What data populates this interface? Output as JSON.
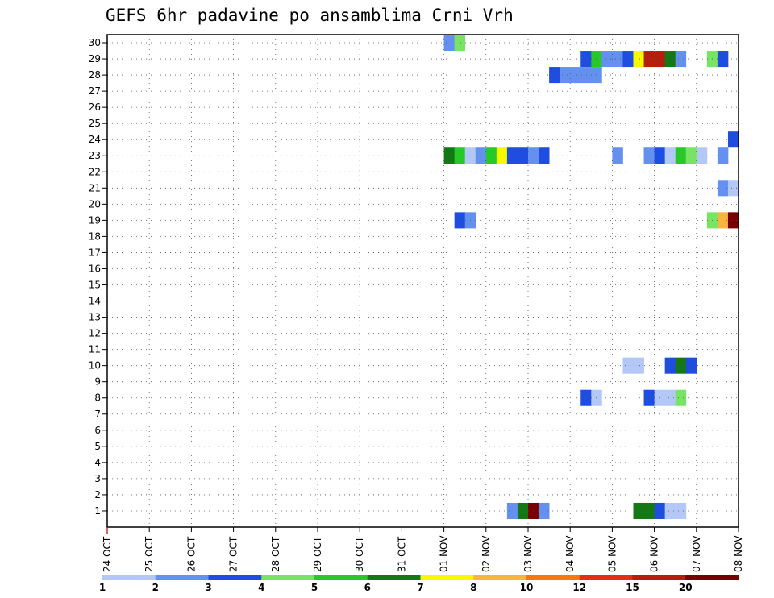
{
  "chart_data": {
    "type": "heatmap",
    "title": "GEFS 6hr padavine po ansamblima Crni Vrh",
    "y_labels": [
      "1",
      "2",
      "3",
      "4",
      "5",
      "6",
      "7",
      "8",
      "9",
      "10",
      "11",
      "12",
      "13",
      "14",
      "15",
      "16",
      "17",
      "18",
      "19",
      "20",
      "21",
      "22",
      "23",
      "24",
      "25",
      "26",
      "27",
      "28",
      "29",
      "30"
    ],
    "x_labels": [
      "24 OCT",
      "25 OCT",
      "26 OCT",
      "27 OCT",
      "28 OCT",
      "29 OCT",
      "30 OCT",
      "31 OCT",
      "01 NOV",
      "02 NOV",
      "03 NOV",
      "04 NOV",
      "05 NOV",
      "06 NOV",
      "07 NOV",
      "08 NOV"
    ],
    "grid": true,
    "colorbar": {
      "ticks": [
        "1",
        "2",
        "3",
        "4",
        "5",
        "6",
        "7",
        "8",
        "10",
        "12",
        "15",
        "20"
      ],
      "colors": [
        "#b4c8f8",
        "#6490f0",
        "#1e4ee0",
        "#78e464",
        "#28c828",
        "#147814",
        "#f8f800",
        "#f8b43c",
        "#f87810",
        "#e03210",
        "#b41e0a",
        "#780000"
      ]
    },
    "cell_columns": "6-hour steps since 24 OCT 00 UTC (x index), member row (y)",
    "cells": [
      {
        "m": 30,
        "t": 32,
        "c": 1
      },
      {
        "m": 30,
        "t": 33,
        "c": 3
      },
      {
        "m": 29,
        "t": 45,
        "c": 2
      },
      {
        "m": 29,
        "t": 46,
        "c": 4
      },
      {
        "m": 29,
        "t": 47,
        "c": 1
      },
      {
        "m": 29,
        "t": 48,
        "c": 1
      },
      {
        "m": 29,
        "t": 49,
        "c": 2
      },
      {
        "m": 29,
        "t": 50,
        "c": 6
      },
      {
        "m": 29,
        "t": 51,
        "c": 10
      },
      {
        "m": 29,
        "t": 52,
        "c": 10
      },
      {
        "m": 29,
        "t": 53,
        "c": 5
      },
      {
        "m": 29,
        "t": 54,
        "c": 1
      },
      {
        "m": 29,
        "t": 57,
        "c": 3
      },
      {
        "m": 29,
        "t": 58,
        "c": 2
      },
      {
        "m": 28,
        "t": 42,
        "c": 2
      },
      {
        "m": 28,
        "t": 43,
        "c": 1
      },
      {
        "m": 28,
        "t": 44,
        "c": 1
      },
      {
        "m": 28,
        "t": 45,
        "c": 1
      },
      {
        "m": 28,
        "t": 46,
        "c": 1
      },
      {
        "m": 24,
        "t": 59,
        "c": 2
      },
      {
        "m": 23,
        "t": 32,
        "c": 5
      },
      {
        "m": 23,
        "t": 33,
        "c": 4
      },
      {
        "m": 23,
        "t": 34,
        "c": 0
      },
      {
        "m": 23,
        "t": 35,
        "c": 1
      },
      {
        "m": 23,
        "t": 36,
        "c": 4
      },
      {
        "m": 23,
        "t": 37,
        "c": 6
      },
      {
        "m": 23,
        "t": 38,
        "c": 2
      },
      {
        "m": 23,
        "t": 39,
        "c": 2
      },
      {
        "m": 23,
        "t": 40,
        "c": 1
      },
      {
        "m": 23,
        "t": 41,
        "c": 2
      },
      {
        "m": 23,
        "t": 48,
        "c": 1
      },
      {
        "m": 23,
        "t": 51,
        "c": 1
      },
      {
        "m": 23,
        "t": 52,
        "c": 2
      },
      {
        "m": 23,
        "t": 53,
        "c": 0
      },
      {
        "m": 23,
        "t": 54,
        "c": 4
      },
      {
        "m": 23,
        "t": 55,
        "c": 3
      },
      {
        "m": 23,
        "t": 56,
        "c": 0
      },
      {
        "m": 23,
        "t": 58,
        "c": 1
      },
      {
        "m": 21,
        "t": 58,
        "c": 1
      },
      {
        "m": 21,
        "t": 59,
        "c": 0
      },
      {
        "m": 19,
        "t": 57,
        "c": 3
      },
      {
        "m": 19,
        "t": 58,
        "c": 7
      },
      {
        "m": 19,
        "t": 59,
        "c": 11
      },
      {
        "m": 19,
        "t": 33,
        "c": 2
      },
      {
        "m": 19,
        "t": 34,
        "c": 1
      },
      {
        "m": 10,
        "t": 49,
        "c": 0
      },
      {
        "m": 10,
        "t": 50,
        "c": 0
      },
      {
        "m": 10,
        "t": 53,
        "c": 2
      },
      {
        "m": 10,
        "t": 54,
        "c": 5
      },
      {
        "m": 10,
        "t": 55,
        "c": 2
      },
      {
        "m": 8,
        "t": 45,
        "c": 2
      },
      {
        "m": 8,
        "t": 46,
        "c": 0
      },
      {
        "m": 8,
        "t": 51,
        "c": 2
      },
      {
        "m": 8,
        "t": 52,
        "c": 0
      },
      {
        "m": 8,
        "t": 53,
        "c": 0
      },
      {
        "m": 8,
        "t": 54,
        "c": 3
      },
      {
        "m": 1,
        "t": 38,
        "c": 1
      },
      {
        "m": 1,
        "t": 39,
        "c": 5
      },
      {
        "m": 1,
        "t": 40,
        "c": 11
      },
      {
        "m": 1,
        "t": 41,
        "c": 1
      },
      {
        "m": 1,
        "t": 50,
        "c": 5
      },
      {
        "m": 1,
        "t": 51,
        "c": 5
      },
      {
        "m": 1,
        "t": 52,
        "c": 2
      },
      {
        "m": 1,
        "t": 53,
        "c": 0
      },
      {
        "m": 1,
        "t": 54,
        "c": 0
      }
    ]
  }
}
